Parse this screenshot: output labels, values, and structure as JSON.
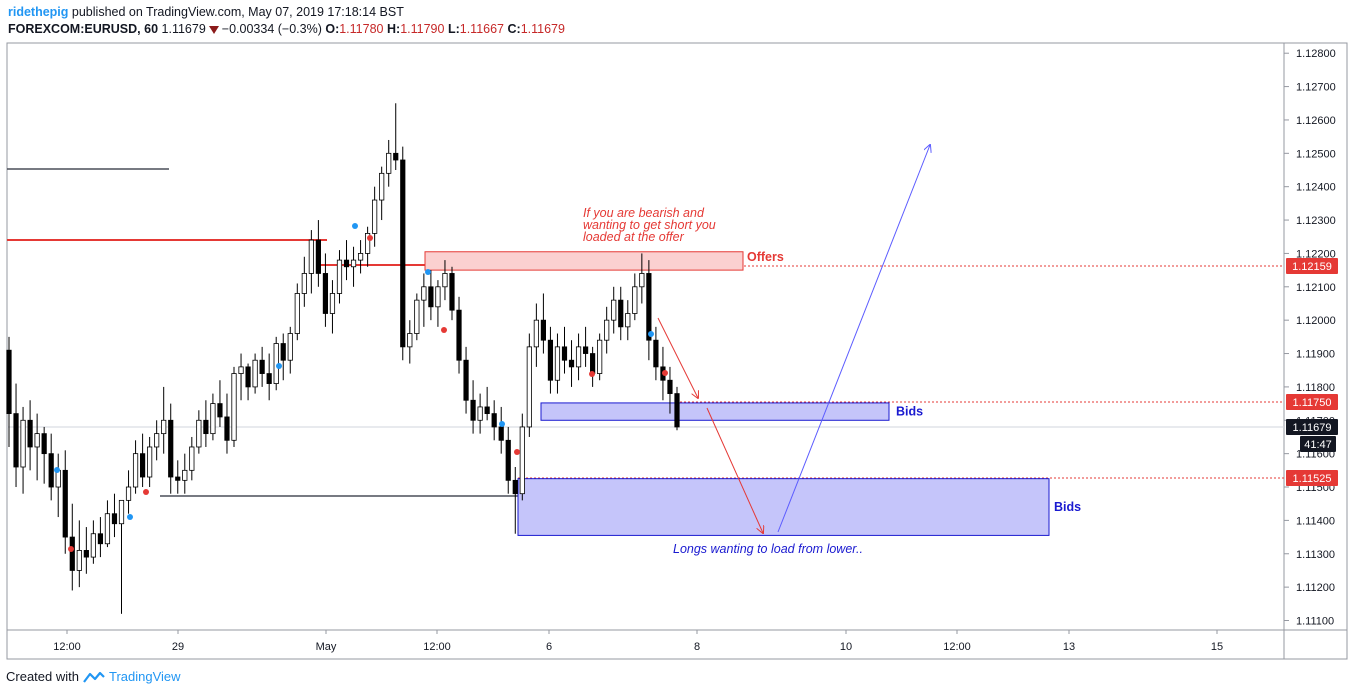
{
  "header": {
    "author": "ridethepig",
    "published_text": "published on TradingView.com, May 07, 2019 17:18:14 BST",
    "symbol": "FOREXCOM:EURUSD, 60",
    "last": "1.11679",
    "change": "−0.00334 (−0.3%)",
    "o_label": "O:",
    "o_value": "1.11780",
    "h_label": "H:",
    "h_value": "1.11790",
    "l_label": "L:",
    "l_value": "1.11667",
    "c_label": "C:",
    "c_value": "1.11679"
  },
  "footer": {
    "created_with": "Created with",
    "brand": "TradingView"
  },
  "chart_data": {
    "type": "candlestick",
    "ylim": [
      1.111,
      1.128
    ],
    "y_ticks": [
      "1.12800",
      "1.12700",
      "1.12600",
      "1.12500",
      "1.12400",
      "1.12300",
      "1.12200",
      "1.12100",
      "1.12000",
      "1.11900",
      "1.11800",
      "1.11700",
      "1.11600",
      "1.11500",
      "1.11400",
      "1.11300",
      "1.11200",
      "1.11100"
    ],
    "x_ticks": [
      "12:00",
      "29",
      "May",
      "12:00",
      "6",
      "8",
      "10",
      "12:00",
      "13",
      "15"
    ],
    "price_labels": [
      {
        "text": "1.12159",
        "value": 1.12159,
        "color": "#e53935"
      },
      {
        "text": "1.11750",
        "value": 1.1175,
        "color": "#e53935"
      },
      {
        "text": "1.11679",
        "value": 1.11679,
        "color": "#131722"
      },
      {
        "text": "41:47",
        "value": 1.1161,
        "color": "#131722"
      },
      {
        "text": "1.11525",
        "value": 1.11525,
        "color": "#e53935"
      }
    ],
    "zones": [
      {
        "label": "Offers",
        "from": 1.1215,
        "to": 1.12205,
        "color": "#e53935"
      },
      {
        "label": "Bids",
        "from": 1.117,
        "to": 1.11752,
        "color": "#1a1ad0"
      },
      {
        "label": "Bids",
        "from": 1.11355,
        "to": 1.11525,
        "color": "#1a1ad0"
      }
    ],
    "annotations": [
      {
        "text": "If you are bearish and",
        "color": "#e53935"
      },
      {
        "text": "wanting to get short you",
        "color": "#e53935"
      },
      {
        "text": "loaded at the offer",
        "color": "#e53935"
      },
      {
        "text": "Longs wanting to load from lower..",
        "color": "#1a1ad0"
      }
    ],
    "series": [
      {
        "points": [
          [
            1.1191,
            1.1195,
            1.1162,
            1.1172
          ],
          [
            1.1172,
            1.1181,
            1.115,
            1.1156
          ],
          [
            1.1156,
            1.1174,
            1.1148,
            1.117
          ],
          [
            1.117,
            1.1176,
            1.1155,
            1.1162
          ],
          [
            1.1162,
            1.1172,
            1.1152,
            1.1166
          ],
          [
            1.1166,
            1.1168,
            1.1151,
            1.116
          ],
          [
            1.116,
            1.1166,
            1.1146,
            1.115
          ],
          [
            1.115,
            1.116,
            1.1141,
            1.1155
          ],
          [
            1.1155,
            1.1161,
            1.113,
            1.1135
          ],
          [
            1.1135,
            1.1145,
            1.1119,
            1.1125
          ],
          [
            1.1125,
            1.114,
            1.112,
            1.1131
          ],
          [
            1.1131,
            1.1138,
            1.1124,
            1.1129
          ],
          [
            1.1129,
            1.114,
            1.1127,
            1.1136
          ],
          [
            1.1136,
            1.1141,
            1.1129,
            1.1133
          ],
          [
            1.1133,
            1.1146,
            1.1132,
            1.1142
          ],
          [
            1.1142,
            1.1148,
            1.1135,
            1.1139
          ],
          [
            1.1139,
            1.1141,
            1.1112,
            1.1146
          ],
          [
            1.1146,
            1.1155,
            1.1142,
            1.115
          ],
          [
            1.115,
            1.1164,
            1.1148,
            1.116
          ],
          [
            1.116,
            1.1166,
            1.115,
            1.1153
          ],
          [
            1.1153,
            1.1165,
            1.115,
            1.1162
          ],
          [
            1.1162,
            1.117,
            1.1158,
            1.1166
          ],
          [
            1.1166,
            1.118,
            1.116,
            1.117
          ],
          [
            1.117,
            1.1175,
            1.1148,
            1.1153
          ],
          [
            1.1153,
            1.1158,
            1.1148,
            1.1152
          ],
          [
            1.1152,
            1.116,
            1.1148,
            1.1155
          ],
          [
            1.1155,
            1.1165,
            1.1152,
            1.1162
          ],
          [
            1.1162,
            1.1173,
            1.116,
            1.117
          ],
          [
            1.117,
            1.1176,
            1.1162,
            1.1166
          ],
          [
            1.1166,
            1.1178,
            1.1164,
            1.1175
          ],
          [
            1.1175,
            1.1182,
            1.1168,
            1.1171
          ],
          [
            1.1171,
            1.1178,
            1.116,
            1.1164
          ],
          [
            1.1164,
            1.1186,
            1.1162,
            1.1184
          ],
          [
            1.1184,
            1.119,
            1.1176,
            1.1186
          ],
          [
            1.1186,
            1.1187,
            1.1176,
            1.118
          ],
          [
            1.118,
            1.119,
            1.1178,
            1.1188
          ],
          [
            1.1188,
            1.1192,
            1.118,
            1.1184
          ],
          [
            1.1184,
            1.119,
            1.1176,
            1.1181
          ],
          [
            1.1181,
            1.1195,
            1.1179,
            1.1193
          ],
          [
            1.1193,
            1.1196,
            1.1182,
            1.1188
          ],
          [
            1.1188,
            1.1198,
            1.1184,
            1.1196
          ],
          [
            1.1196,
            1.1211,
            1.1194,
            1.1208
          ],
          [
            1.1208,
            1.1219,
            1.1204,
            1.1214
          ],
          [
            1.1214,
            1.1227,
            1.1208,
            1.1224
          ],
          [
            1.1224,
            1.123,
            1.121,
            1.1214
          ],
          [
            1.1214,
            1.122,
            1.1198,
            1.1202
          ],
          [
            1.1202,
            1.1212,
            1.1196,
            1.1208
          ],
          [
            1.1208,
            1.1221,
            1.1205,
            1.1218
          ],
          [
            1.1218,
            1.1224,
            1.1212,
            1.1216
          ],
          [
            1.1216,
            1.1222,
            1.121,
            1.1218
          ],
          [
            1.1218,
            1.1224,
            1.1214,
            1.122
          ],
          [
            1.122,
            1.1228,
            1.1216,
            1.1226
          ],
          [
            1.1226,
            1.124,
            1.1222,
            1.1236
          ],
          [
            1.1236,
            1.1246,
            1.123,
            1.1244
          ],
          [
            1.1244,
            1.1254,
            1.124,
            1.125
          ],
          [
            1.125,
            1.1265,
            1.1245,
            1.1248
          ],
          [
            1.1248,
            1.1252,
            1.1188,
            1.1192
          ],
          [
            1.1192,
            1.12,
            1.1187,
            1.1196
          ],
          [
            1.1196,
            1.1208,
            1.1194,
            1.1206
          ],
          [
            1.1206,
            1.1214,
            1.1198,
            1.121
          ],
          [
            1.121,
            1.1215,
            1.12,
            1.1204
          ],
          [
            1.1204,
            1.1212,
            1.1198,
            1.121
          ],
          [
            1.121,
            1.1218,
            1.1206,
            1.1214
          ],
          [
            1.1214,
            1.1216,
            1.12,
            1.1203
          ],
          [
            1.1203,
            1.1207,
            1.1184,
            1.1188
          ],
          [
            1.1188,
            1.1192,
            1.1172,
            1.1176
          ],
          [
            1.1176,
            1.1182,
            1.1166,
            1.117
          ],
          [
            1.117,
            1.1178,
            1.1166,
            1.1174
          ],
          [
            1.1174,
            1.118,
            1.117,
            1.1172
          ],
          [
            1.1172,
            1.1176,
            1.1164,
            1.1168
          ],
          [
            1.1168,
            1.1174,
            1.116,
            1.1164
          ],
          [
            1.1164,
            1.1168,
            1.1148,
            1.1152
          ],
          [
            1.1152,
            1.1156,
            1.1136,
            1.1148
          ],
          [
            1.1148,
            1.1172,
            1.1146,
            1.1168
          ],
          [
            1.1168,
            1.1196,
            1.1165,
            1.1192
          ],
          [
            1.1192,
            1.1205,
            1.1186,
            1.12
          ],
          [
            1.12,
            1.1208,
            1.119,
            1.1194
          ],
          [
            1.1194,
            1.1198,
            1.1178,
            1.1182
          ],
          [
            1.1182,
            1.1196,
            1.1178,
            1.1192
          ],
          [
            1.1192,
            1.1198,
            1.1184,
            1.1188
          ],
          [
            1.1188,
            1.1194,
            1.118,
            1.1186
          ],
          [
            1.1186,
            1.1196,
            1.1182,
            1.1192
          ],
          [
            1.1192,
            1.1198,
            1.1186,
            1.119
          ],
          [
            1.119,
            1.1192,
            1.118,
            1.1184
          ],
          [
            1.1184,
            1.1196,
            1.1182,
            1.1194
          ],
          [
            1.1194,
            1.1204,
            1.119,
            1.12
          ],
          [
            1.12,
            1.121,
            1.1196,
            1.1206
          ],
          [
            1.1206,
            1.121,
            1.1194,
            1.1198
          ],
          [
            1.1198,
            1.1206,
            1.1194,
            1.1202
          ],
          [
            1.1202,
            1.1214,
            1.12,
            1.121
          ],
          [
            1.121,
            1.122,
            1.1205,
            1.1214
          ],
          [
            1.1214,
            1.1218,
            1.1188,
            1.1194
          ],
          [
            1.1194,
            1.1198,
            1.1182,
            1.1186
          ],
          [
            1.1186,
            1.1192,
            1.1176,
            1.1182
          ],
          [
            1.1182,
            1.1186,
            1.1172,
            1.1178
          ],
          [
            1.1178,
            1.118,
            1.1167,
            1.1168
          ]
        ]
      }
    ]
  }
}
